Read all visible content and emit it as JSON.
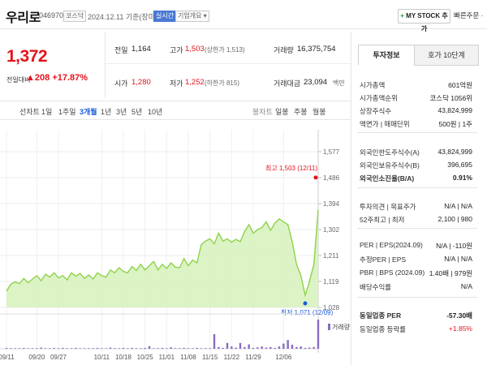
{
  "header": {
    "stock_name": "우리로",
    "stock_code": "046970",
    "market_tag": "코스닥",
    "date_text": "2024.12.11  기준(장마감)",
    "realtime_tag": "실시간",
    "company_overview": "기업개요 ▾",
    "mystock_plus": "+",
    "mystock_label": " MY STOCK 추가",
    "quick_order": "빠른주문 ·"
  },
  "price": {
    "current": "1,372",
    "change_label": "전일대비",
    "change_arrow": "▲",
    "change_value": "208",
    "change_pct": "+17.87%"
  },
  "metrics": {
    "prev_label": "전일",
    "prev_value": "1,164",
    "high_label": "고가",
    "high_value": "1,503",
    "high_sub": "(상한가 1,513)",
    "volume_label": "거래량",
    "volume_value": "16,375,754",
    "open_label": "시가",
    "open_value": "1,280",
    "low_label": "저가",
    "low_value": "1,252",
    "low_sub": "(하한가 815)",
    "amount_label": "거래대금",
    "amount_value": "23,094",
    "amount_unit": "백만"
  },
  "periods": {
    "items": [
      "선차트",
      "1일",
      "1주일",
      "3개월",
      "1년",
      "3년",
      "5년",
      "10년"
    ],
    "active_index": 3,
    "candles_label": "봉차트",
    "candle_items": [
      "일봉",
      "주봉",
      "월봉"
    ]
  },
  "sidebar": {
    "tab_invest": "투자정보",
    "tab_quote": "호가 10단계",
    "rows": [
      {
        "label": "시가총액",
        "value": "601억원"
      },
      {
        "label": "시가총액순위",
        "value": "코스닥 1056위"
      },
      {
        "label": "상장주식수",
        "value": "43,824,999"
      },
      {
        "label": "액면가 | 매매단위",
        "value": "500원 | 1주"
      },
      {
        "label": "외국인한도주식수(A)",
        "value": "43,824,999"
      },
      {
        "label": "외국인보유주식수(B)",
        "value": "396,695"
      },
      {
        "label": "외국인소진율(B/A)",
        "value": "0.91%"
      },
      {
        "label": "투자의견 | 목표주가",
        "value": "N/A | N/A"
      },
      {
        "label": "52주최고 | 최저",
        "value": "2,100 | 980"
      },
      {
        "label": "PER | EPS(2024.09)",
        "value": "N/A | -110원"
      },
      {
        "label": "추정PER | EPS",
        "value": "N/A | N/A"
      },
      {
        "label": "PBR | BPS (2024.09)",
        "value": "1.40배 | 979원"
      },
      {
        "label": "배당수익률",
        "value": "N/A"
      },
      {
        "label": "동일업종 PER",
        "value": "-57.30배"
      },
      {
        "label": "동일업종 등락률",
        "value": "+1.85%"
      }
    ]
  },
  "colors": {
    "up": "#e3141c",
    "down": "#1a5bd8",
    "line": "#8dd34a",
    "area": "#d8f2bf",
    "volume": "#8a6bc2"
  },
  "chart_data": {
    "type": "area",
    "y_ticks": [
      "1,577",
      "1,486",
      "1,394",
      "1,302",
      "1,211",
      "1,119",
      "1,028"
    ],
    "ylim": [
      1028,
      1577
    ],
    "x_ticks": [
      "09/11",
      "09/20",
      "09/27",
      "10/11",
      "10/18",
      "10/25",
      "11/01",
      "11/08",
      "11/15",
      "11/22",
      "11/29",
      "12/06"
    ],
    "high_label": "최고 1,503 (12/11)",
    "low_label": "최저 1,071 (12/09)",
    "volume_label": "거래량",
    "series": [
      {
        "values": [
          1085,
          1110,
          1118,
          1112,
          1130,
          1115,
          1128,
          1140,
          1122,
          1145,
          1135,
          1150,
          1132,
          1140,
          1125,
          1150,
          1138,
          1148,
          1130,
          1142,
          1128,
          1150,
          1140,
          1135,
          1160,
          1150,
          1168,
          1155,
          1150,
          1172,
          1158,
          1180,
          1160,
          1175,
          1190,
          1160,
          1180,
          1165,
          1185,
          1170,
          1168,
          1200,
          1175,
          1195,
          1185,
          1250,
          1262,
          1270,
          1252,
          1290,
          1262,
          1270,
          1258,
          1268,
          1260,
          1295,
          1320,
          1290,
          1302,
          1310,
          1330,
          1300,
          1325,
          1340,
          1330,
          1320,
          1260,
          1180,
          1140,
          1071,
          1120,
          1180,
          1372
        ]
      }
    ],
    "volume": [
      3,
      2,
      2,
      2,
      3,
      2,
      2,
      2,
      4,
      2,
      2,
      3,
      2,
      3,
      2,
      2,
      3,
      2,
      2,
      2,
      2,
      3,
      2,
      2,
      4,
      2,
      2,
      3,
      2,
      3,
      2,
      2,
      3,
      9,
      2,
      2,
      3,
      2,
      5,
      2,
      2,
      3,
      2,
      2,
      3,
      2,
      2,
      2,
      50,
      6,
      3,
      20,
      8,
      4,
      20,
      6,
      15,
      3,
      5,
      8,
      4,
      6,
      3,
      8,
      18,
      30,
      14,
      6,
      8,
      3,
      4,
      6,
      100
    ]
  }
}
